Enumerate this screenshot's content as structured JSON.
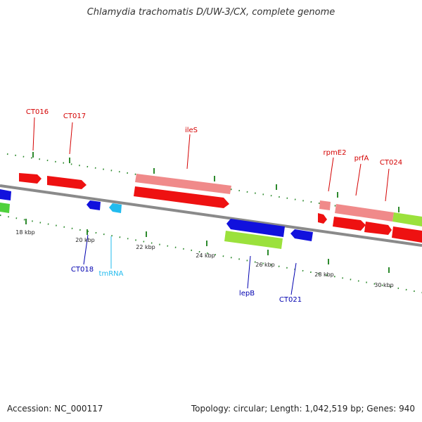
{
  "title": "Chlamydia trachomatis D/UW-3/CX, complete genome",
  "footer": {
    "accession": "Accession: NC_000117",
    "summary": "Topology: circular; Length: 1,042,519 bp; Genes: 940"
  },
  "colors": {
    "forward_label": "#d40000",
    "reverse_label": "#0000b0",
    "rna_label": "#22bbee",
    "tick": "#2d8a2d",
    "backbone": "#8a8a8a"
  },
  "scale_labels": [
    "18 kbp",
    "20 kbp",
    "22 kbp",
    "24 kbp",
    "26 kbp",
    "28 kbp",
    "30 kbp"
  ],
  "gene_labels": [
    {
      "text": "CT016",
      "color": "forward"
    },
    {
      "text": "CT017",
      "color": "forward"
    },
    {
      "text": "ileS",
      "color": "forward"
    },
    {
      "text": "rpmE2",
      "color": "forward"
    },
    {
      "text": "prfA",
      "color": "forward"
    },
    {
      "text": "CT024",
      "color": "forward"
    },
    {
      "text": "CT018",
      "color": "reverse"
    },
    {
      "text": "tmRNA",
      "color": "rna"
    },
    {
      "text": "lepB",
      "color": "reverse"
    },
    {
      "text": "CT021",
      "color": "reverse"
    }
  ]
}
